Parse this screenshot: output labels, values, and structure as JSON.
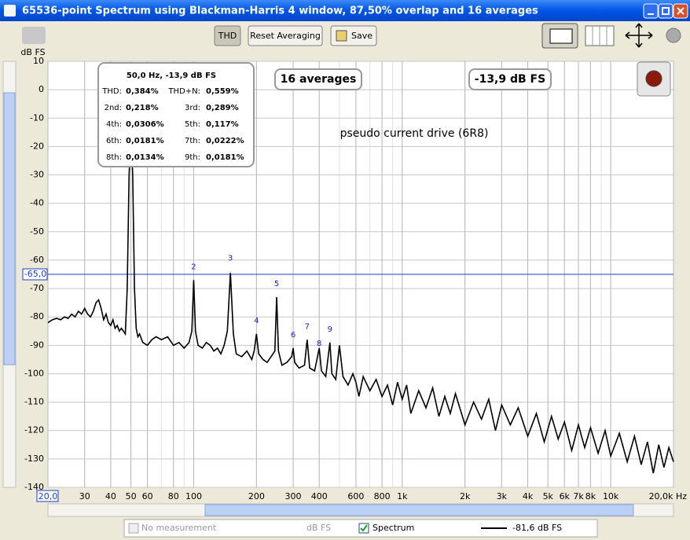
{
  "window": {
    "title": "65536-point Spectrum using Blackman-Harris 4 window, 87,50% overlap and 16 averages"
  },
  "toolbar": {
    "thd": "THD",
    "reset": "Reset Averaging",
    "save": "Save"
  },
  "overlays": {
    "averages": "16 averages",
    "level": "-13,9 dB FS",
    "note": "pseudo current drive (6R8)"
  },
  "thd_box": {
    "title": "50,0 Hz, -13,9 dB FS",
    "rows": [
      [
        "THD:",
        "0,384%",
        "THD+N:",
        "0,559%"
      ],
      [
        "2nd:",
        "0,218%",
        "3rd:",
        "0,289%"
      ],
      [
        "4th:",
        "0,0306%",
        "5th:",
        "0,117%"
      ],
      [
        "6th:",
        "0,0181%",
        "7th:",
        "0,0222%"
      ],
      [
        "8th:",
        "0,0134%",
        "9th:",
        "0,0181%"
      ]
    ]
  },
  "legend": {
    "empty": "No measurement",
    "unit": "dB FS",
    "value": "-81,6 dB FS"
  },
  "chart_data": {
    "type": "line",
    "y_label": "dB FS",
    "x_unit": "Hz",
    "log_x": true,
    "grid": true,
    "xlim": [
      20,
      20000
    ],
    "ylim": [
      -140,
      10
    ],
    "xticks": [
      {
        "value": 20,
        "label": "20,0"
      },
      30,
      40,
      50,
      60,
      80,
      100,
      200,
      300,
      400,
      600,
      800,
      {
        "value": 1000,
        "label": "1k"
      },
      {
        "value": 2000,
        "label": "2k"
      },
      {
        "value": 3000,
        "label": "3k"
      },
      {
        "value": 4000,
        "label": "4k"
      },
      {
        "value": 5000,
        "label": "5k"
      },
      {
        "value": 6000,
        "label": "6k"
      },
      {
        "value": 7000,
        "label": "7k"
      },
      {
        "value": 8000,
        "label": "8k"
      },
      {
        "value": 10000,
        "label": "10k"
      },
      {
        "value": 20000,
        "label": "20,0k"
      }
    ],
    "yticks": [
      10,
      0,
      -10,
      -20,
      -30,
      -40,
      -50,
      -60,
      -70,
      -80,
      -90,
      -100,
      -110,
      -120,
      -130,
      -140
    ],
    "cursor": {
      "value": -65,
      "label": "-65,0"
    },
    "x": [
      20,
      21,
      22,
      23,
      24,
      25,
      26,
      27,
      28,
      29,
      30,
      31,
      32,
      33,
      34,
      35,
      36,
      37,
      38,
      39,
      40,
      41,
      42,
      43,
      44,
      45,
      46,
      47,
      48,
      49,
      50,
      51,
      52,
      53,
      54,
      55,
      57,
      60,
      63,
      66,
      70,
      75,
      80,
      85,
      90,
      95,
      98,
      100,
      102,
      105,
      110,
      115,
      120,
      125,
      130,
      135,
      140,
      145,
      150,
      155,
      160,
      170,
      180,
      190,
      195,
      200,
      205,
      215,
      225,
      235,
      245,
      250,
      255,
      265,
      280,
      295,
      300,
      305,
      320,
      340,
      350,
      360,
      380,
      400,
      410,
      430,
      450,
      460,
      480,
      500,
      520,
      550,
      580,
      600,
      620,
      650,
      700,
      750,
      800,
      850,
      900,
      950,
      1000,
      1050,
      1100,
      1200,
      1300,
      1400,
      1500,
      1600,
      1700,
      1800,
      2000,
      2200,
      2400,
      2600,
      2800,
      3000,
      3300,
      3600,
      4000,
      4400,
      4800,
      5200,
      5600,
      6000,
      6500,
      7000,
      7500,
      8000,
      8700,
      9400,
      10000,
      11000,
      12000,
      13000,
      14000,
      15000,
      16000,
      17000,
      18000,
      19000,
      20000
    ],
    "series": [
      {
        "name": "Spectrum",
        "color": "#000000",
        "values": [
          -82,
          -81,
          -80.5,
          -81,
          -80,
          -80.5,
          -79,
          -80,
          -78,
          -79,
          -77,
          -79,
          -80,
          -78,
          -75,
          -74,
          -77,
          -81,
          -79,
          -82,
          -83,
          -81,
          -84,
          -83,
          -85,
          -84,
          -85,
          -86,
          -70,
          -30,
          -13.9,
          -30,
          -70,
          -84,
          -87,
          -86,
          -89,
          -90,
          -88,
          -87,
          -88,
          -87,
          -90,
          -89,
          -91,
          -89,
          -85,
          -67,
          -85,
          -90,
          -91,
          -89,
          -90,
          -92,
          -91,
          -93,
          -90,
          -85,
          -64.5,
          -86,
          -93,
          -94,
          -92,
          -95,
          -92,
          -86,
          -93,
          -95,
          -96,
          -94,
          -92,
          -73,
          -92,
          -97,
          -96,
          -94,
          -91,
          -96,
          -98,
          -97,
          -88,
          -98,
          -99,
          -91,
          -99,
          -101,
          -89,
          -100,
          -102,
          -90,
          -101,
          -104,
          -100,
          -103,
          -108,
          -101,
          -106,
          -102,
          -108,
          -104,
          -111,
          -103,
          -109,
          -104,
          -114,
          -106,
          -112,
          -105,
          -115,
          -108,
          -114,
          -107,
          -118,
          -110,
          -116,
          -109,
          -120,
          -111,
          -118,
          -112,
          -122,
          -114,
          -124,
          -115,
          -123,
          -117,
          -127,
          -118,
          -126,
          -119,
          -128,
          -120,
          -129,
          -121,
          -131,
          -122,
          -132,
          -124,
          -135,
          -125,
          -133,
          -126,
          -131
        ]
      }
    ],
    "harmonics": [
      {
        "label": "2",
        "x": 100,
        "y": -64
      },
      {
        "label": "3",
        "x": 150,
        "y": -61
      },
      {
        "label": "4",
        "x": 200,
        "y": -83
      },
      {
        "label": "5",
        "x": 250,
        "y": -70
      },
      {
        "label": "6",
        "x": 300,
        "y": -88
      },
      {
        "label": "7",
        "x": 350,
        "y": -85
      },
      {
        "label": "8",
        "x": 400,
        "y": -91
      },
      {
        "label": "9",
        "x": 450,
        "y": -86
      }
    ]
  }
}
